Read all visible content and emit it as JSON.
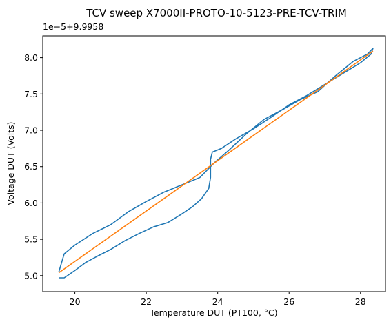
{
  "chart_data": {
    "type": "line",
    "title": "TCV sweep X7000II-PROTO-10-5123-PRE-TCV-TRIM",
    "xlabel": "Temperature DUT (PT100, °C)",
    "ylabel": "Voltage DUT (Volts)",
    "offset_text": "1e−5+9.9958",
    "xlim": [
      19.1,
      28.7
    ],
    "ylim": [
      4.78,
      8.3
    ],
    "xticks": [
      20,
      22,
      24,
      26,
      28
    ],
    "xtick_labels": [
      "20",
      "22",
      "24",
      "26",
      "28"
    ],
    "yticks": [
      5.0,
      5.5,
      6.0,
      6.5,
      7.0,
      7.5,
      8.0
    ],
    "ytick_labels": [
      "5.0",
      "5.5",
      "6.0",
      "6.5",
      "7.0",
      "7.5",
      "8.0"
    ],
    "grid": false,
    "series": [
      {
        "color": "#1f77b4",
        "kind": "measured",
        "x": [
          19.55,
          19.7,
          20.0,
          20.3,
          20.6,
          21.0,
          21.4,
          21.8,
          22.2,
          22.6,
          23.0,
          23.3,
          23.55,
          23.75,
          23.8,
          23.8,
          23.85,
          24.1,
          24.5,
          25.0,
          25.5,
          26.0,
          26.5,
          27.0,
          27.5,
          28.0,
          28.3,
          28.35,
          28.2,
          27.8,
          27.3,
          26.8,
          26.3,
          25.8,
          25.3,
          24.8,
          24.3,
          23.9,
          23.5,
          23.0,
          22.5,
          22.0,
          21.5,
          21.0,
          20.5,
          20.0,
          19.7,
          19.55
        ],
        "y": [
          4.97,
          4.97,
          5.07,
          5.18,
          5.26,
          5.36,
          5.48,
          5.58,
          5.67,
          5.73,
          5.85,
          5.95,
          6.06,
          6.2,
          6.35,
          6.6,
          6.7,
          6.75,
          6.88,
          7.02,
          7.18,
          7.35,
          7.48,
          7.63,
          7.78,
          7.93,
          8.05,
          8.13,
          8.05,
          7.95,
          7.75,
          7.53,
          7.42,
          7.28,
          7.15,
          6.95,
          6.72,
          6.55,
          6.35,
          6.25,
          6.15,
          6.02,
          5.88,
          5.7,
          5.58,
          5.42,
          5.3,
          5.05
        ]
      },
      {
        "color": "#ff7f0e",
        "kind": "linear fit",
        "x": [
          19.55,
          28.35
        ],
        "y": [
          5.04,
          8.09
        ]
      }
    ]
  }
}
